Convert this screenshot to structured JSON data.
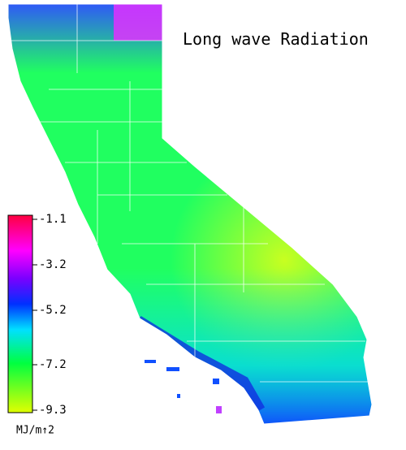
{
  "title": "Long wave Radiation",
  "legend": {
    "ticks": [
      -1.1,
      -3.2,
      -5.2,
      -7.2,
      -9.3
    ],
    "unit": "MJ/m↑2"
  }
}
